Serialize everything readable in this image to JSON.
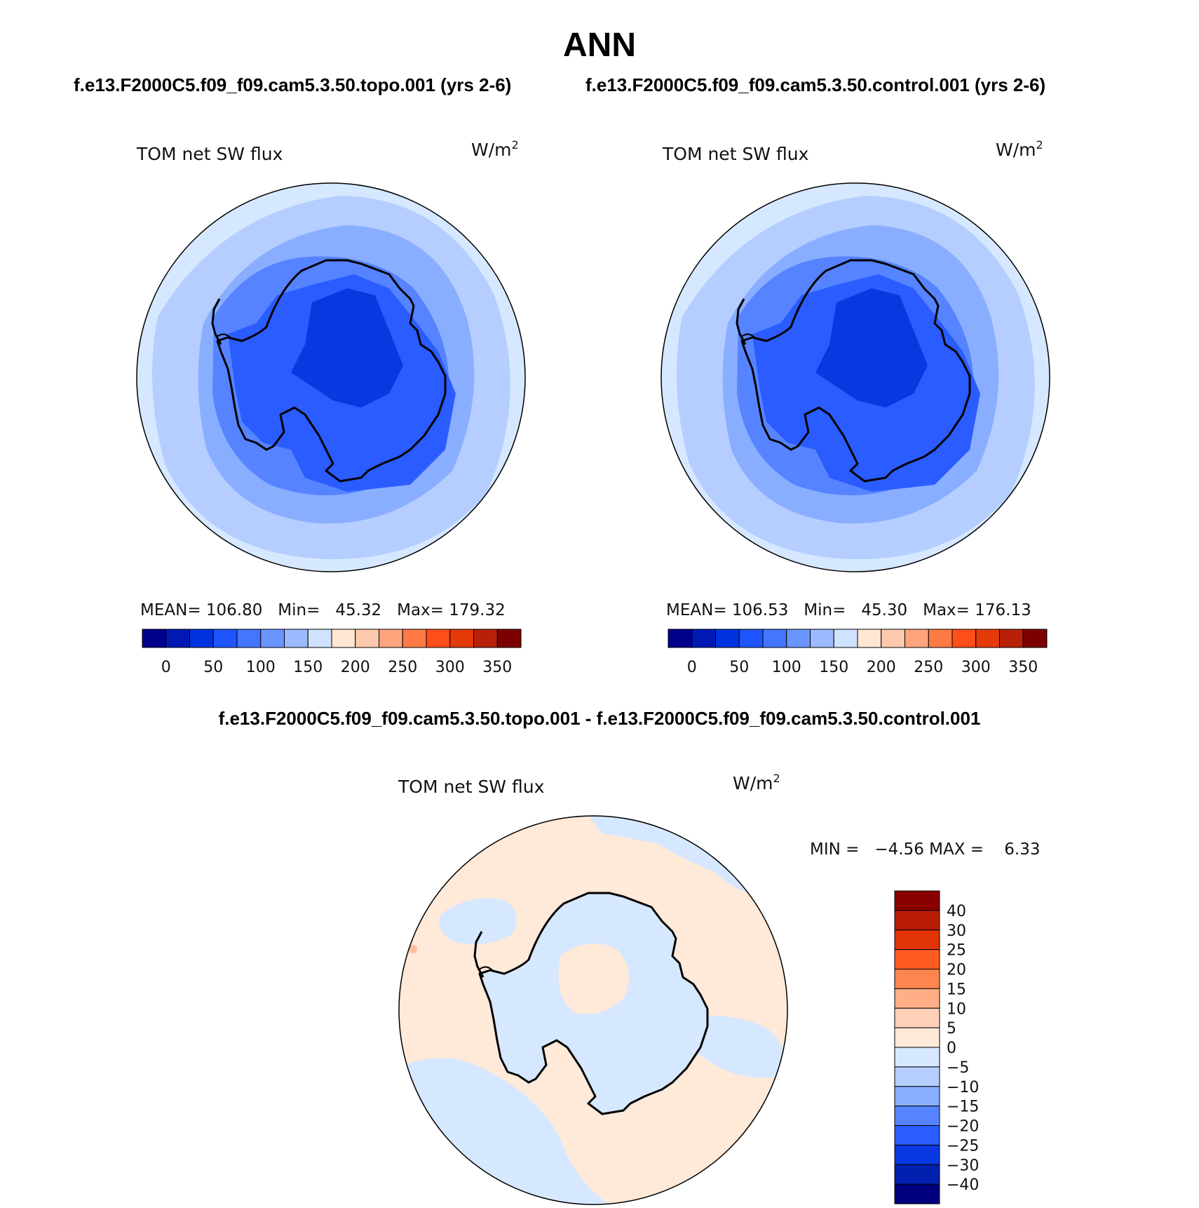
{
  "title": "ANN",
  "panels": [
    {
      "case_title": "f.e13.F2000C5.f09_f09.cam5.3.50.topo.001 (yrs 2-6)",
      "variable": "TOM net SW flux",
      "units_base": "W/m",
      "units_exp": "2",
      "stats": "MEAN= 106.80   Min=   45.32   Max= 179.32"
    },
    {
      "case_title": "f.e13.F2000C5.f09_f09.cam5.3.50.control.001 (yrs 2-6)",
      "variable": "TOM net SW flux",
      "units_base": "W/m",
      "units_exp": "2",
      "stats": "MEAN= 106.53   Min=   45.30   Max= 176.13"
    }
  ],
  "diff_panel": {
    "case_title": "f.e13.F2000C5.f09_f09.cam5.3.50.topo.001 - f.e13.F2000C5.f09_f09.cam5.3.50.control.001",
    "variable": "TOM net SW flux",
    "units_base": "W/m",
    "units_exp": "2",
    "stats": "MIN =   −4.56 MAX =    6.33"
  },
  "colorbar_horizontal": {
    "labels": [
      "0",
      "50",
      "100",
      "150",
      "200",
      "250",
      "300",
      "350"
    ],
    "colors": [
      "#00008a",
      "#0019b5",
      "#0033e0",
      "#1f55ff",
      "#4475ff",
      "#6a95ff",
      "#9bbaff",
      "#cfe2ff",
      "#ffe6d2",
      "#ffc9ae",
      "#ffa47d",
      "#ff7a45",
      "#ff4e1a",
      "#e53a0a",
      "#b82108",
      "#7c0000"
    ]
  },
  "colorbar_vertical": {
    "labels": [
      "40",
      "30",
      "25",
      "20",
      "15",
      "10",
      "5",
      "0",
      "−5",
      "−10",
      "−15",
      "−20",
      "−25",
      "−30",
      "−40"
    ],
    "colors": [
      "#8a0000",
      "#b91c05",
      "#e33408",
      "#ff5a22",
      "#ff8550",
      "#ffae85",
      "#ffd0b8",
      "#ffe9d8",
      "#d6e8ff",
      "#b5ceff",
      "#8aaeff",
      "#5683ff",
      "#2a5cff",
      "#0a38e0",
      "#0020b0",
      "#00007e"
    ]
  }
}
